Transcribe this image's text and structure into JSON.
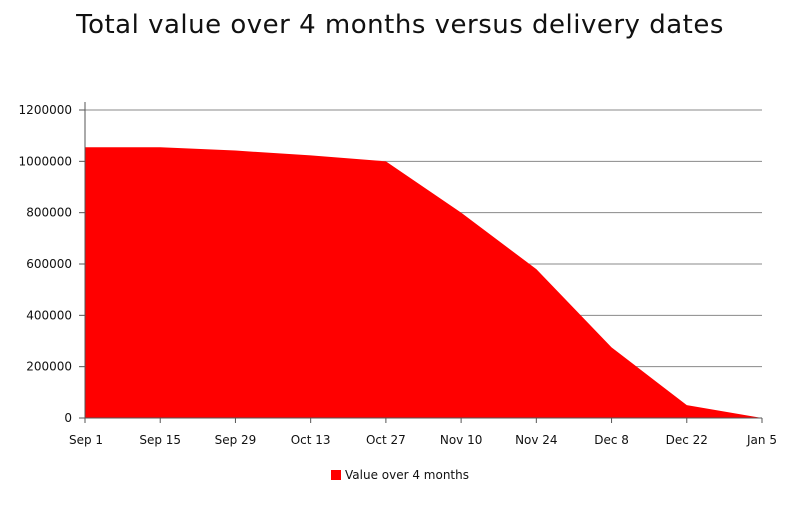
{
  "chart_data": {
    "type": "area",
    "title": "Total value over 4 months versus delivery dates",
    "xlabel": "",
    "ylabel": "",
    "categories": [
      "Sep 1",
      "Sep 15",
      "Sep 29",
      "Oct 13",
      "Oct 27",
      "Nov 10",
      "Nov 24",
      "Dec 8",
      "Dec 22",
      "Jan 5"
    ],
    "series": [
      {
        "name": "Value over 4 months",
        "color": "#ff0000",
        "values": [
          1055000,
          1055000,
          1042000,
          1023000,
          1000000,
          800000,
          580000,
          275000,
          50000,
          0
        ]
      }
    ],
    "ylim": [
      0,
      1200000
    ],
    "yticks": [
      0,
      200000,
      400000,
      600000,
      800000,
      1000000,
      1200000
    ],
    "grid": true,
    "legend_position": "bottom"
  }
}
